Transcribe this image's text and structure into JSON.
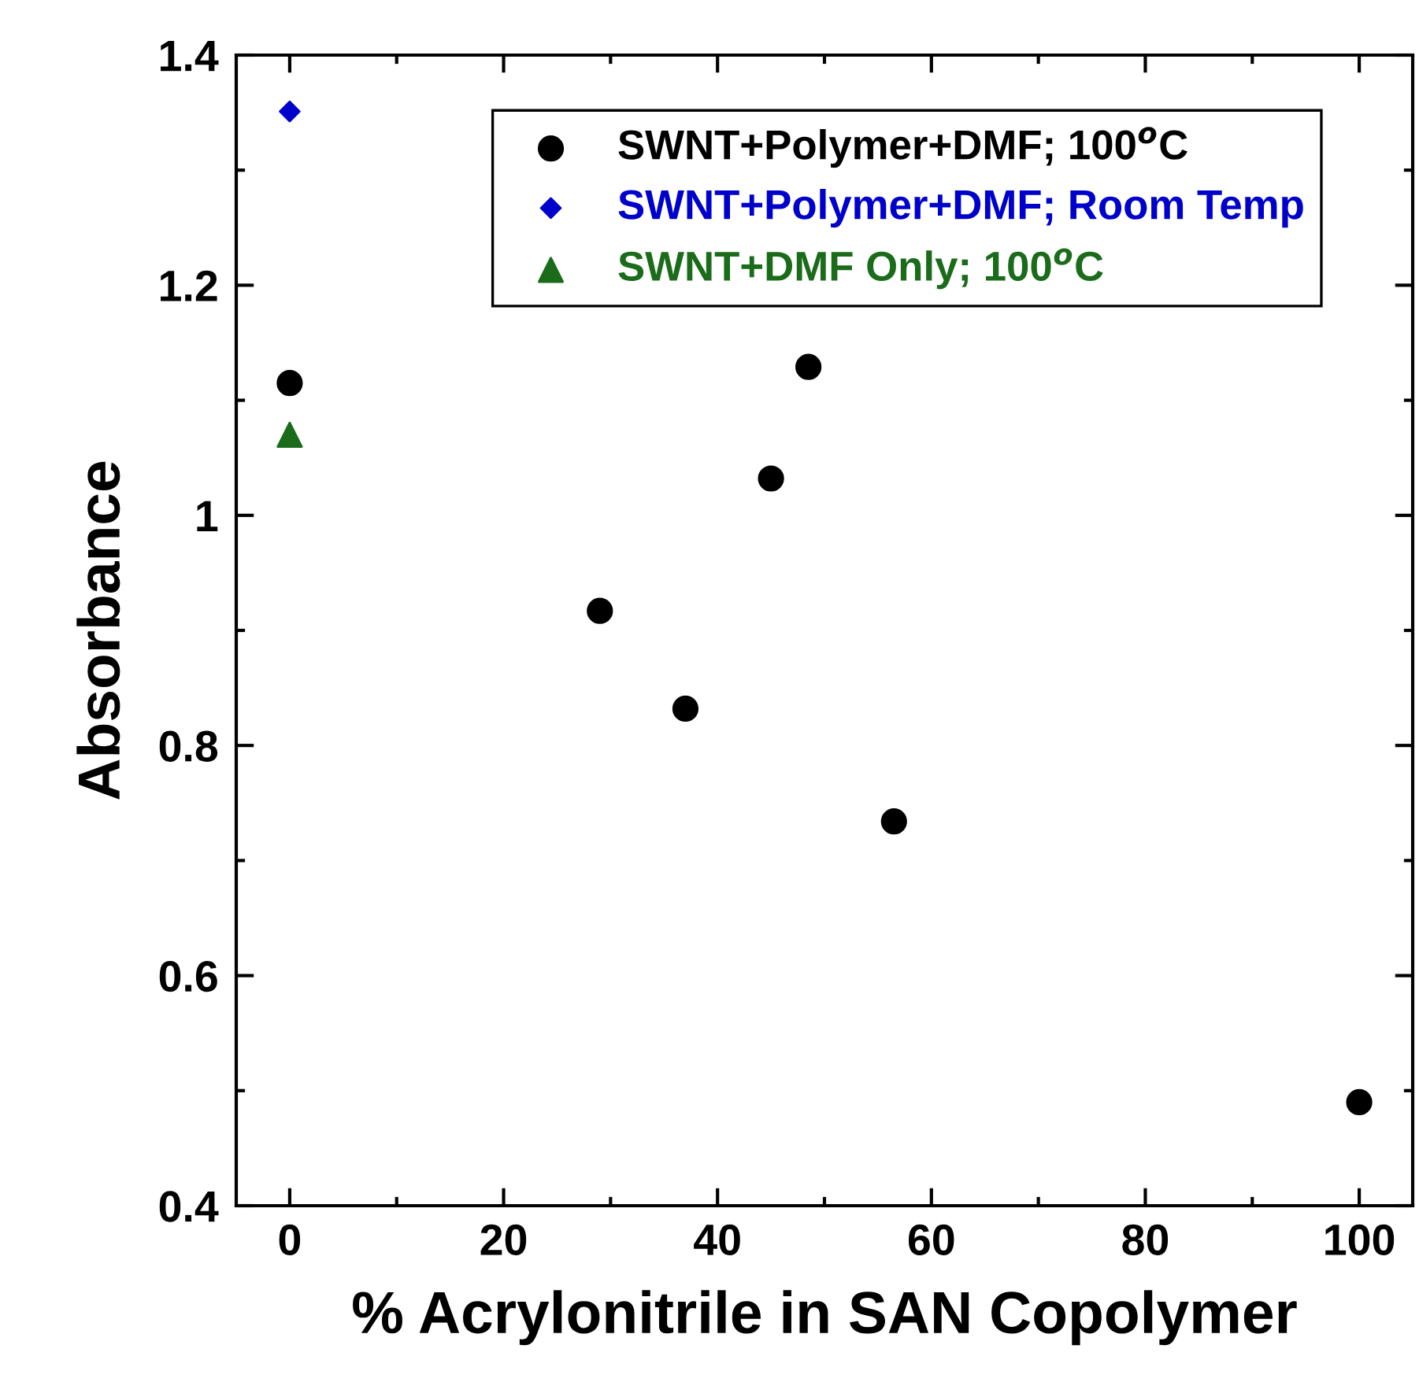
{
  "chart_data": {
    "type": "scatter",
    "xlabel": "% Acrylonitrile in SAN Copolymer",
    "ylabel": "Absorbance",
    "xlim": [
      -5,
      105
    ],
    "xticks": [
      0,
      20,
      40,
      60,
      80,
      100
    ],
    "ylim": [
      0.4,
      1.4
    ],
    "yticks": [
      0.4,
      0.6,
      0.8,
      {
        "value": 1.0,
        "label": "1"
      },
      1.2,
      1.4
    ],
    "grid": false,
    "legend": "top right",
    "series": [
      {
        "name": "SWNT+Polymer+DMF; 100$^{o}$C",
        "color": "#000000",
        "marker": "circle",
        "x": [
          0,
          29,
          37,
          45,
          48.5,
          56.5,
          100
        ],
        "values": [
          1.115,
          0.917,
          0.832,
          1.032,
          1.129,
          0.734,
          0.49
        ]
      },
      {
        "name": "SWNT+Polymer+DMF; Room Temp",
        "color": "#0000cc",
        "marker": "diamond",
        "x": [
          0
        ],
        "values": [
          1.351
        ]
      },
      {
        "name": "SWNT+DMF Only; 100$^{o}$C",
        "color": "#1a6b1a",
        "marker": "triangle",
        "x": [
          0
        ],
        "values": [
          1.07
        ]
      }
    ]
  }
}
